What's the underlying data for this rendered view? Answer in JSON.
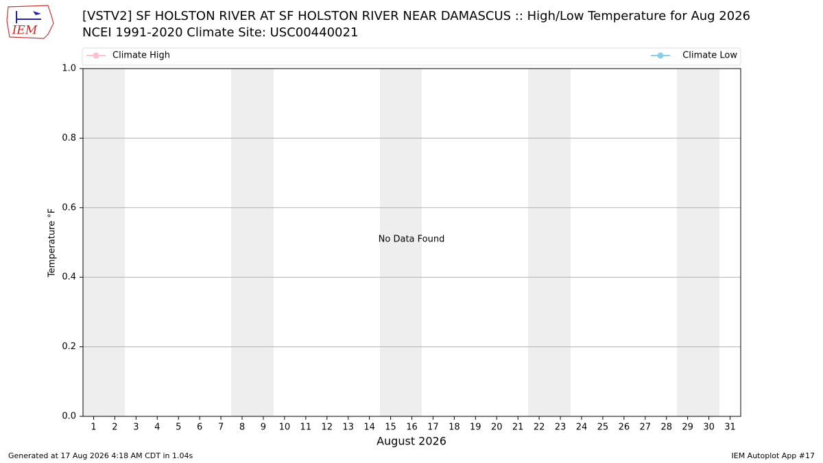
{
  "logo_text": "IEM",
  "footer_left": "Generated at 17 Aug 2026 4:18 AM CDT in 1.04s",
  "footer_right": "IEM Autoplot App #17",
  "chart_data": {
    "type": "line",
    "title": "[VSTV2] SF HOLSTON RIVER  AT SF HOLSTON RIVER NEAR DAMASCUS :: High/Low Temperature for Aug 2026",
    "subtitle": "NCEI 1991-2020 Climate Site: USC00440021",
    "ylabel": "Temperature °F",
    "xlabel": "August 2026",
    "annotation": "No Data Found",
    "categories": [
      "1",
      "2",
      "3",
      "4",
      "5",
      "6",
      "7",
      "8",
      "9",
      "10",
      "11",
      "12",
      "13",
      "14",
      "15",
      "16",
      "17",
      "18",
      "19",
      "20",
      "21",
      "22",
      "23",
      "24",
      "25",
      "26",
      "27",
      "28",
      "29",
      "30",
      "31"
    ],
    "series": [
      {
        "name": "Climate High",
        "color": "pink",
        "values": [
          null,
          null,
          null,
          null,
          null,
          null,
          null,
          null,
          null,
          null,
          null,
          null,
          null,
          null,
          null,
          null,
          null,
          null,
          null,
          null,
          null,
          null,
          null,
          null,
          null,
          null,
          null,
          null,
          null,
          null,
          null
        ]
      },
      {
        "name": "Climate Low",
        "color": "skyblue",
        "values": [
          null,
          null,
          null,
          null,
          null,
          null,
          null,
          null,
          null,
          null,
          null,
          null,
          null,
          null,
          null,
          null,
          null,
          null,
          null,
          null,
          null,
          null,
          null,
          null,
          null,
          null,
          null,
          null,
          null,
          null,
          null
        ]
      }
    ],
    "ylim": [
      0,
      1
    ],
    "yticks": [
      {
        "value": 0,
        "label": "0.0"
      },
      0.2,
      0.4,
      0.6,
      0.8,
      {
        "value": 1,
        "label": "1.0"
      }
    ],
    "grid": true
  }
}
